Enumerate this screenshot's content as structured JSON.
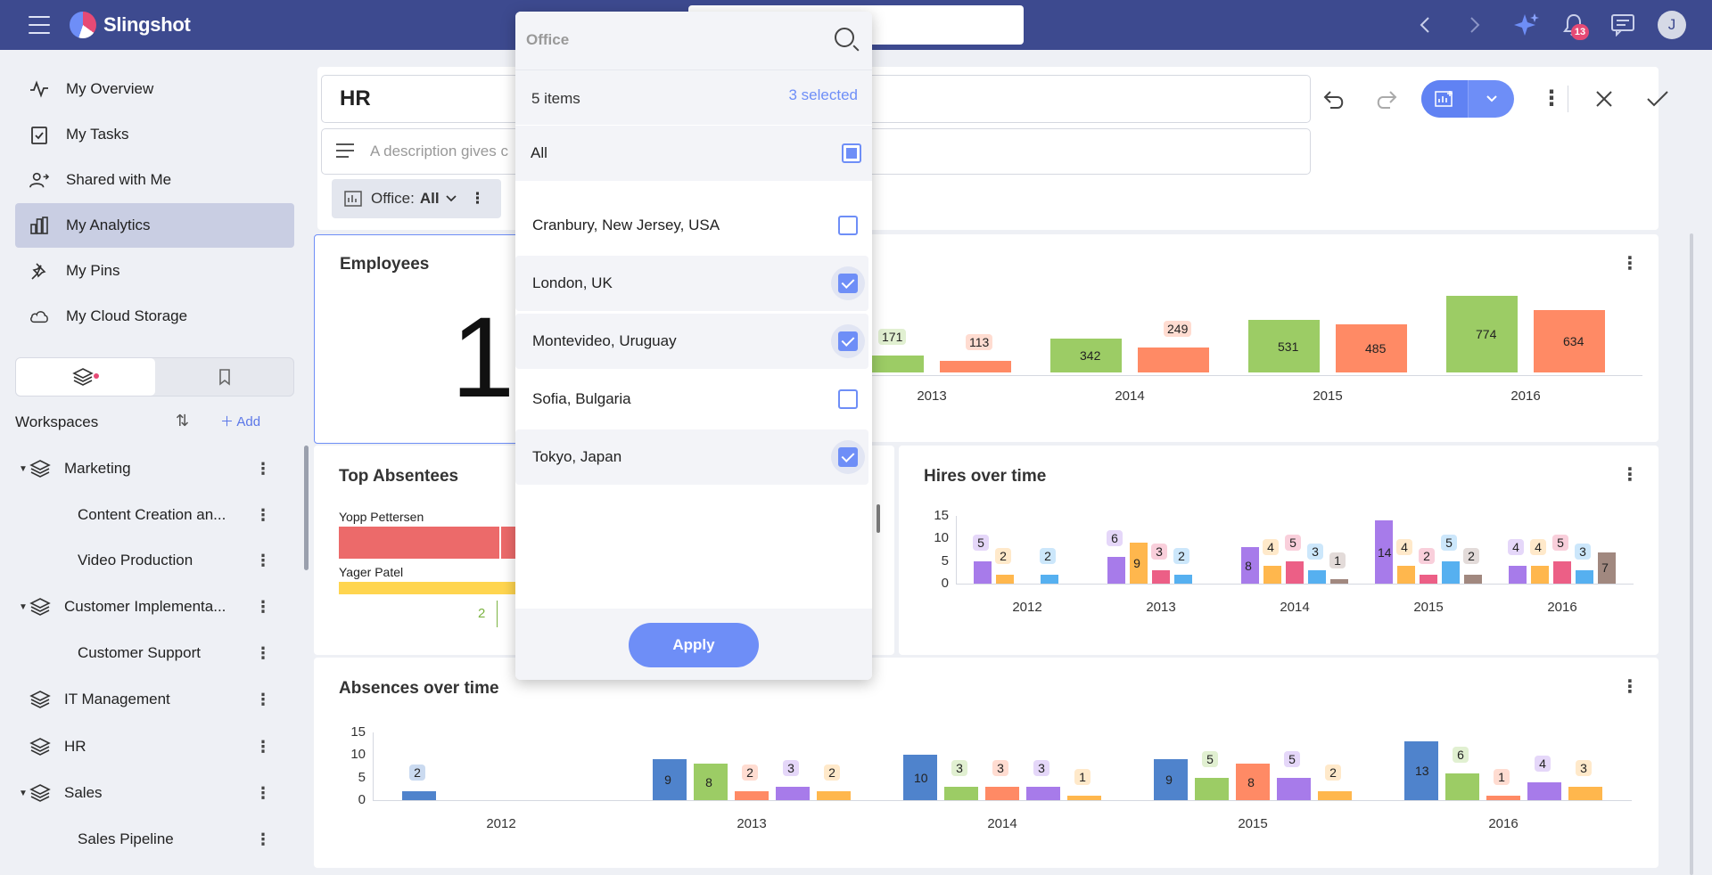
{
  "topbar": {
    "app_name": "Slingshot",
    "notification_count": "13",
    "user_initial": "J",
    "icons": [
      "menu-icon",
      "back-icon",
      "forward-icon",
      "sparkle-icon",
      "bell-icon",
      "chat-icon"
    ]
  },
  "sidebar": {
    "nav": [
      {
        "label": "My Overview",
        "icon": "pulse-icon"
      },
      {
        "label": "My Tasks",
        "icon": "clipboard-check-icon"
      },
      {
        "label": "Shared with Me",
        "icon": "person-share-icon"
      },
      {
        "label": "My Analytics",
        "icon": "bar-chart-icon",
        "active": true
      },
      {
        "label": "My Pins",
        "icon": "pin-icon"
      },
      {
        "label": "My Cloud Storage",
        "icon": "cloud-icon"
      }
    ],
    "workspaces_title": "Workspaces",
    "add_label": "Add",
    "tree": [
      {
        "label": "Marketing",
        "level": 0,
        "expanded": true
      },
      {
        "label": "Content Creation an...",
        "level": 1
      },
      {
        "label": "Video Production",
        "level": 1
      },
      {
        "label": "Customer Implementa...",
        "level": 0,
        "expanded": true
      },
      {
        "label": "Customer Support",
        "level": 1
      },
      {
        "label": "IT Management",
        "level": 0
      },
      {
        "label": "HR",
        "level": 0
      },
      {
        "label": "Sales",
        "level": 0,
        "expanded": true
      },
      {
        "label": "Sales Pipeline",
        "level": 1
      }
    ]
  },
  "header": {
    "title": "HR",
    "description_placeholder": "A description gives c",
    "filter_label": "Office:",
    "filter_value": "All"
  },
  "dropdown": {
    "search_placeholder": "Office",
    "count_label": "5 items",
    "selected_label": "3 selected",
    "all_label": "All",
    "items": [
      {
        "label": "Cranbury, New Jersey, USA",
        "checked": false
      },
      {
        "label": "London, UK",
        "checked": true
      },
      {
        "label": "Montevideo, Uruguay",
        "checked": true
      },
      {
        "label": "Sofia, Bulgaria",
        "checked": false
      },
      {
        "label": "Tokyo, Japan",
        "checked": true
      }
    ],
    "apply_label": "Apply"
  },
  "cards": {
    "employees": {
      "title": "Employees",
      "value_partial": "1"
    },
    "top_absentees": {
      "title": "Top Absentees",
      "names": [
        "Yopp Pettersen",
        "Yager Patel"
      ],
      "tick": "2"
    },
    "hires": {
      "title": "Hires over time"
    },
    "absences": {
      "title": "Absences over time"
    }
  },
  "chart_data": [
    {
      "type": "bar",
      "title": "",
      "categories": [
        "2013",
        "2014",
        "2015",
        "2016"
      ],
      "series": [
        {
          "values": [
            171,
            342,
            531,
            774
          ],
          "color": "#9ccc65"
        },
        {
          "values": [
            113,
            249,
            485,
            634
          ],
          "color": "#ff8a65"
        }
      ]
    },
    {
      "type": "bar",
      "title": "Hires over time",
      "categories": [
        "2012",
        "2013",
        "2014",
        "2015",
        "2016"
      ],
      "yticks": [
        "15",
        "10",
        "5",
        "0"
      ],
      "ylim": [
        0,
        15
      ],
      "series": [
        {
          "values": [
            5,
            6,
            8,
            14,
            4
          ],
          "color": "#a77bea"
        },
        {
          "values": [
            2,
            9,
            4,
            4,
            4
          ],
          "color": "#ffb74d"
        },
        {
          "values": [
            null,
            3,
            5,
            2,
            5
          ],
          "color": "#ec5f86"
        },
        {
          "values": [
            2,
            2,
            3,
            5,
            3
          ],
          "color": "#56b0f0"
        },
        {
          "values": [
            null,
            null,
            1,
            2,
            7
          ],
          "color": "#a1887f"
        }
      ]
    },
    {
      "type": "bar",
      "title": "Absences over time",
      "categories": [
        "2012",
        "2013",
        "2014",
        "2015",
        "2016"
      ],
      "yticks": [
        "15",
        "10",
        "5",
        "0"
      ],
      "ylim": [
        0,
        15
      ],
      "series": [
        {
          "values": [
            2,
            9,
            10,
            9,
            13
          ],
          "color": "#4f83cc"
        },
        {
          "values": [
            null,
            8,
            3,
            5,
            6
          ],
          "color": "#9ccc65"
        },
        {
          "values": [
            null,
            2,
            3,
            8,
            1
          ],
          "color": "#ff8a65"
        },
        {
          "values": [
            null,
            3,
            3,
            5,
            4
          ],
          "color": "#a77bea"
        },
        {
          "values": [
            null,
            2,
            1,
            2,
            3
          ],
          "color": "#ffb74d"
        }
      ]
    }
  ]
}
